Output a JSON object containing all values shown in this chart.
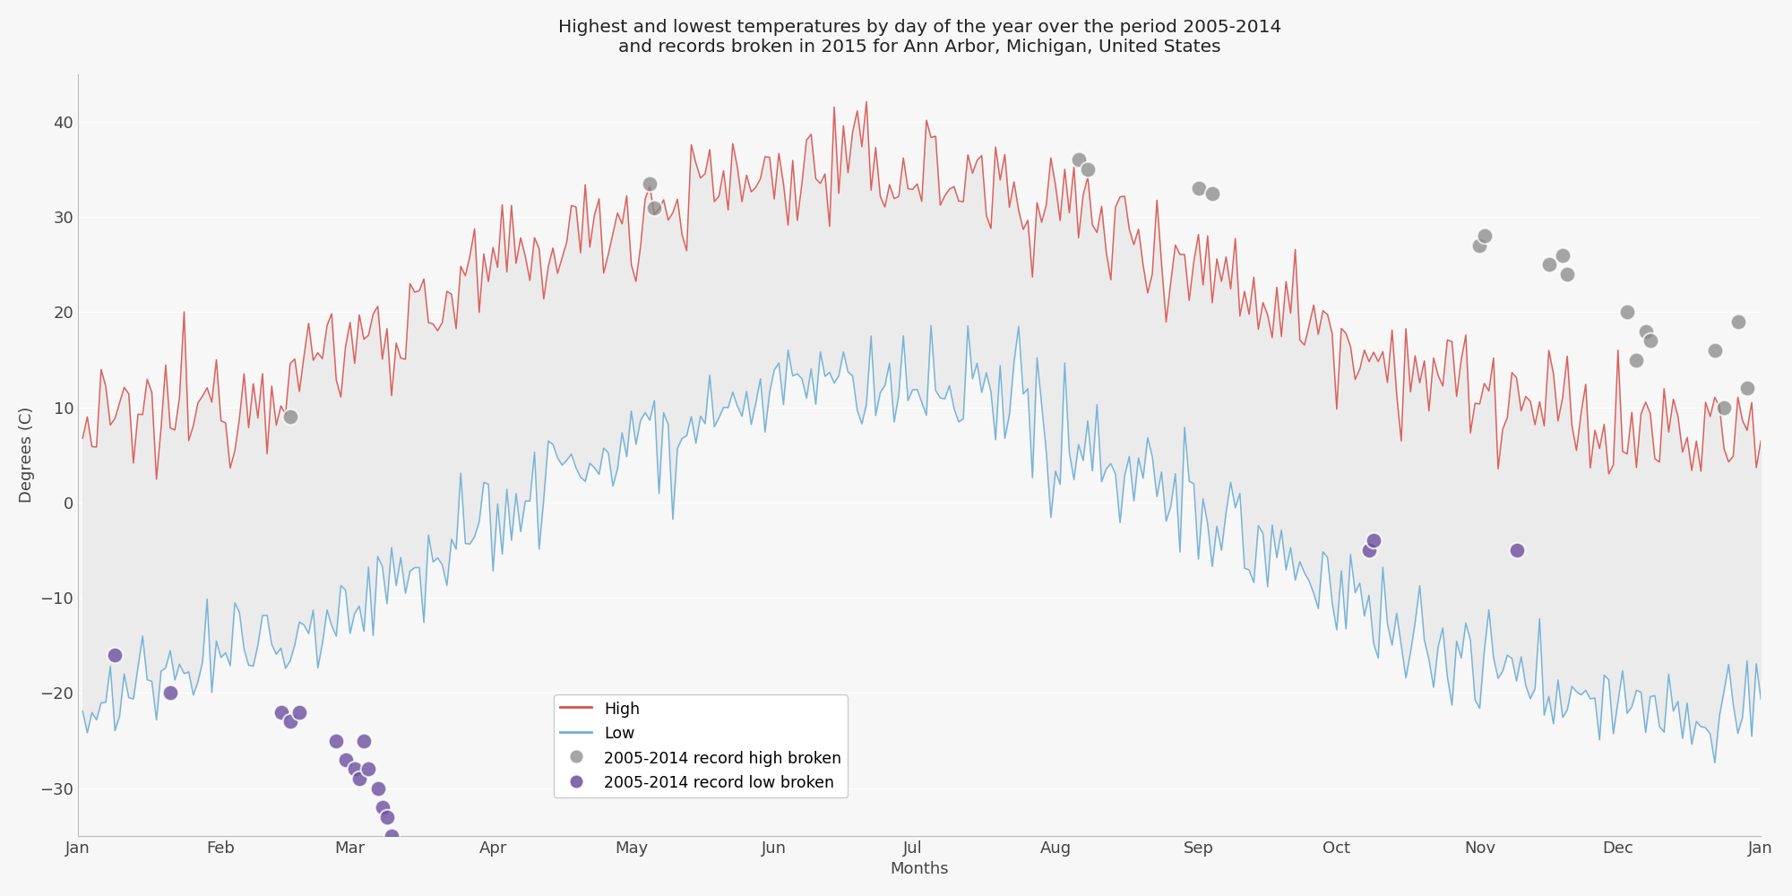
{
  "title_line1": "Highest and lowest temperatures by day of the year over the period 2005-2014",
  "title_line2": "and records broken in 2015 for Ann Arbor, Michigan, United States",
  "xlabel": "Months",
  "ylabel": "Degrees (C)",
  "high_color": "#d9534f",
  "low_color": "#6baed6",
  "fill_color": "#ebebeb",
  "background_color": "#f7f7f7",
  "record_high_color": "#888888",
  "record_low_color": "#6b4f9e",
  "legend_labels": [
    "High",
    "Low",
    "2005-2014 record high broken",
    "2005-2014 record low broken"
  ],
  "ylim": [
    -35,
    45
  ],
  "month_ticks": [
    0,
    31,
    59,
    90,
    120,
    151,
    181,
    212,
    243,
    273,
    304,
    334,
    365
  ],
  "month_labels": [
    "Jan",
    "Feb",
    "Mar",
    "Apr",
    "May",
    "Jun",
    "Jul",
    "Aug",
    "Sep",
    "Oct",
    "Nov",
    "Dec",
    "Jan"
  ],
  "record_high_days": [
    46,
    124,
    125,
    217,
    219,
    243,
    246,
    304,
    305,
    319,
    322,
    323,
    336,
    338,
    340,
    341,
    355,
    357,
    360,
    362
  ],
  "record_high_temps": [
    9,
    33.5,
    31,
    36,
    35,
    33,
    32.5,
    27,
    28,
    25,
    26,
    24,
    20,
    15,
    18,
    17,
    16,
    10,
    19,
    12
  ],
  "record_low_days": [
    8,
    20,
    44,
    46,
    48,
    56,
    58,
    60,
    61,
    62,
    63,
    65,
    66,
    67,
    68,
    280,
    281,
    312
  ],
  "record_low_temps": [
    -16,
    -20,
    -22,
    -23,
    -22,
    -25,
    -27,
    -28,
    -29,
    -25,
    -28,
    -30,
    -32,
    -33,
    -35,
    -5,
    -4,
    -5
  ]
}
